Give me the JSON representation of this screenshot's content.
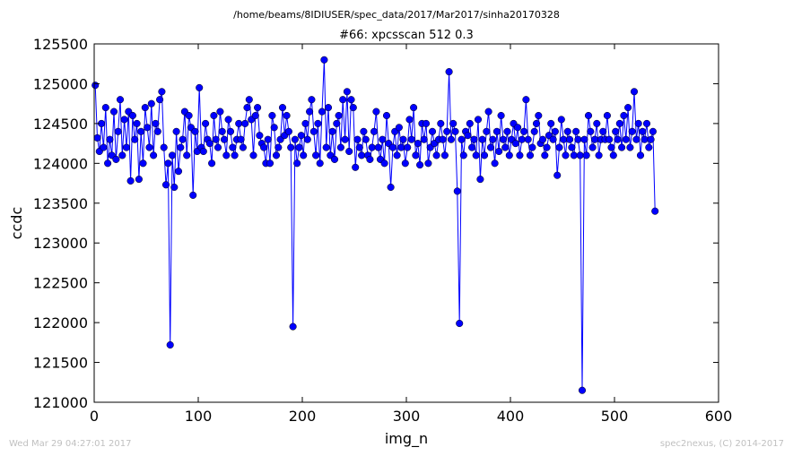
{
  "chart_data": {
    "type": "line",
    "suptitle": "/home/beams/8IDIUSER/spec_data/2017/Mar2017/sinha20170328",
    "title": "#66: xpcsscan 512 0.3",
    "xlabel": "img_n",
    "ylabel": "ccdc",
    "xlim": [
      0,
      600
    ],
    "ylim": [
      121000,
      125500
    ],
    "xticks": [
      "0",
      "100",
      "200",
      "300",
      "400",
      "500",
      "600"
    ],
    "yticks": [
      "121000",
      "121500",
      "122000",
      "122500",
      "123000",
      "123500",
      "124000",
      "124500",
      "125000",
      "125500"
    ],
    "grid": false,
    "marker": "circle",
    "color": "#0000ff",
    "x_start": 1,
    "x_step": 2,
    "series": [
      {
        "values": [
          124980,
          124320,
          124150,
          124500,
          124200,
          124700,
          124000,
          124300,
          124100,
          124650,
          124050,
          124400,
          124800,
          124100,
          124550,
          124200,
          124650,
          123780,
          124600,
          124300,
          124500,
          123800,
          124400,
          124000,
          124700,
          124450,
          124200,
          124750,
          124100,
          124500,
          124400,
          124800,
          124900,
          124200,
          123730,
          124000,
          121720,
          124100,
          123700,
          124400,
          123900,
          124200,
          124300,
          124650,
          124100,
          124600,
          124450,
          123600,
          124400,
          124150,
          124950,
          124200,
          124150,
          124500,
          124300,
          124250,
          124000,
          124600,
          124300,
          124200,
          124650,
          124400,
          124300,
          124100,
          124550,
          124400,
          124200,
          124100,
          124300,
          124500,
          124300,
          124200,
          124500,
          124700,
          124800,
          124550,
          124100,
          124600,
          124700,
          124350,
          124250,
          124200,
          124000,
          124300,
          124000,
          124600,
          124450,
          124100,
          124200,
          124300,
          124700,
          124350,
          124600,
          124400,
          124200,
          121950,
          124300,
          124000,
          124200,
          124350,
          124100,
          124500,
          124300,
          124650,
          124800,
          124400,
          124100,
          124500,
          124000,
          124650,
          125300,
          124200,
          124700,
          124100,
          124400,
          124050,
          124500,
          124600,
          124200,
          124800,
          124300,
          124900,
          124150,
          124800,
          124700,
          123950,
          124300,
          124200,
          124100,
          124400,
          124300,
          124100,
          124050,
          124200,
          124400,
          124650,
          124200,
          124050,
          124300,
          124000,
          124600,
          124250,
          123700,
          124200,
          124400,
          124100,
          124450,
          124200,
          124300,
          124000,
          124200,
          124550,
          124300,
          124700,
          124100,
          124250,
          123980,
          124500,
          124300,
          124500,
          124000,
          124200,
          124400,
          124250,
          124100,
          124300,
          124500,
          124300,
          124100,
          124400,
          125150,
          124300,
          124500,
          124400,
          123650,
          121990,
          124300,
          124100,
          124400,
          124350,
          124500,
          124200,
          124300,
          124100,
          124550,
          123800,
          124300,
          124100,
          124400,
          124650,
          124200,
          124300,
          124000,
          124400,
          124150,
          124600,
          124300,
          124200,
          124400,
          124100,
          124300,
          124500,
          124250,
          124450,
          124100,
          124300,
          124400,
          124800,
          124300,
          124100,
          124200,
          124400,
          124500,
          124600,
          124250,
          124300,
          124100,
          124200,
          124350,
          124500,
          124300,
          124400,
          123850,
          124200,
          124550,
          124300,
          124100,
          124400,
          124300,
          124200,
          124100,
          124400,
          124300,
          124100,
          121150,
          124300,
          124100,
          124600,
          124400,
          124200,
          124300,
          124500,
          124100,
          124300,
          124400,
          124300,
          124600,
          124300,
          124200,
          124100,
          124400,
          124300,
          124500,
          124200,
          124600,
          124300,
          124700,
          124200,
          124400,
          124900,
          124300,
          124500,
          124100,
          124400,
          124300,
          124500,
          124200,
          124300,
          124400,
          123400
        ]
      }
    ]
  },
  "footer": {
    "left": "Wed Mar 29 04:27:01 2017",
    "right": "spec2nexus, (C) 2014-2017"
  }
}
